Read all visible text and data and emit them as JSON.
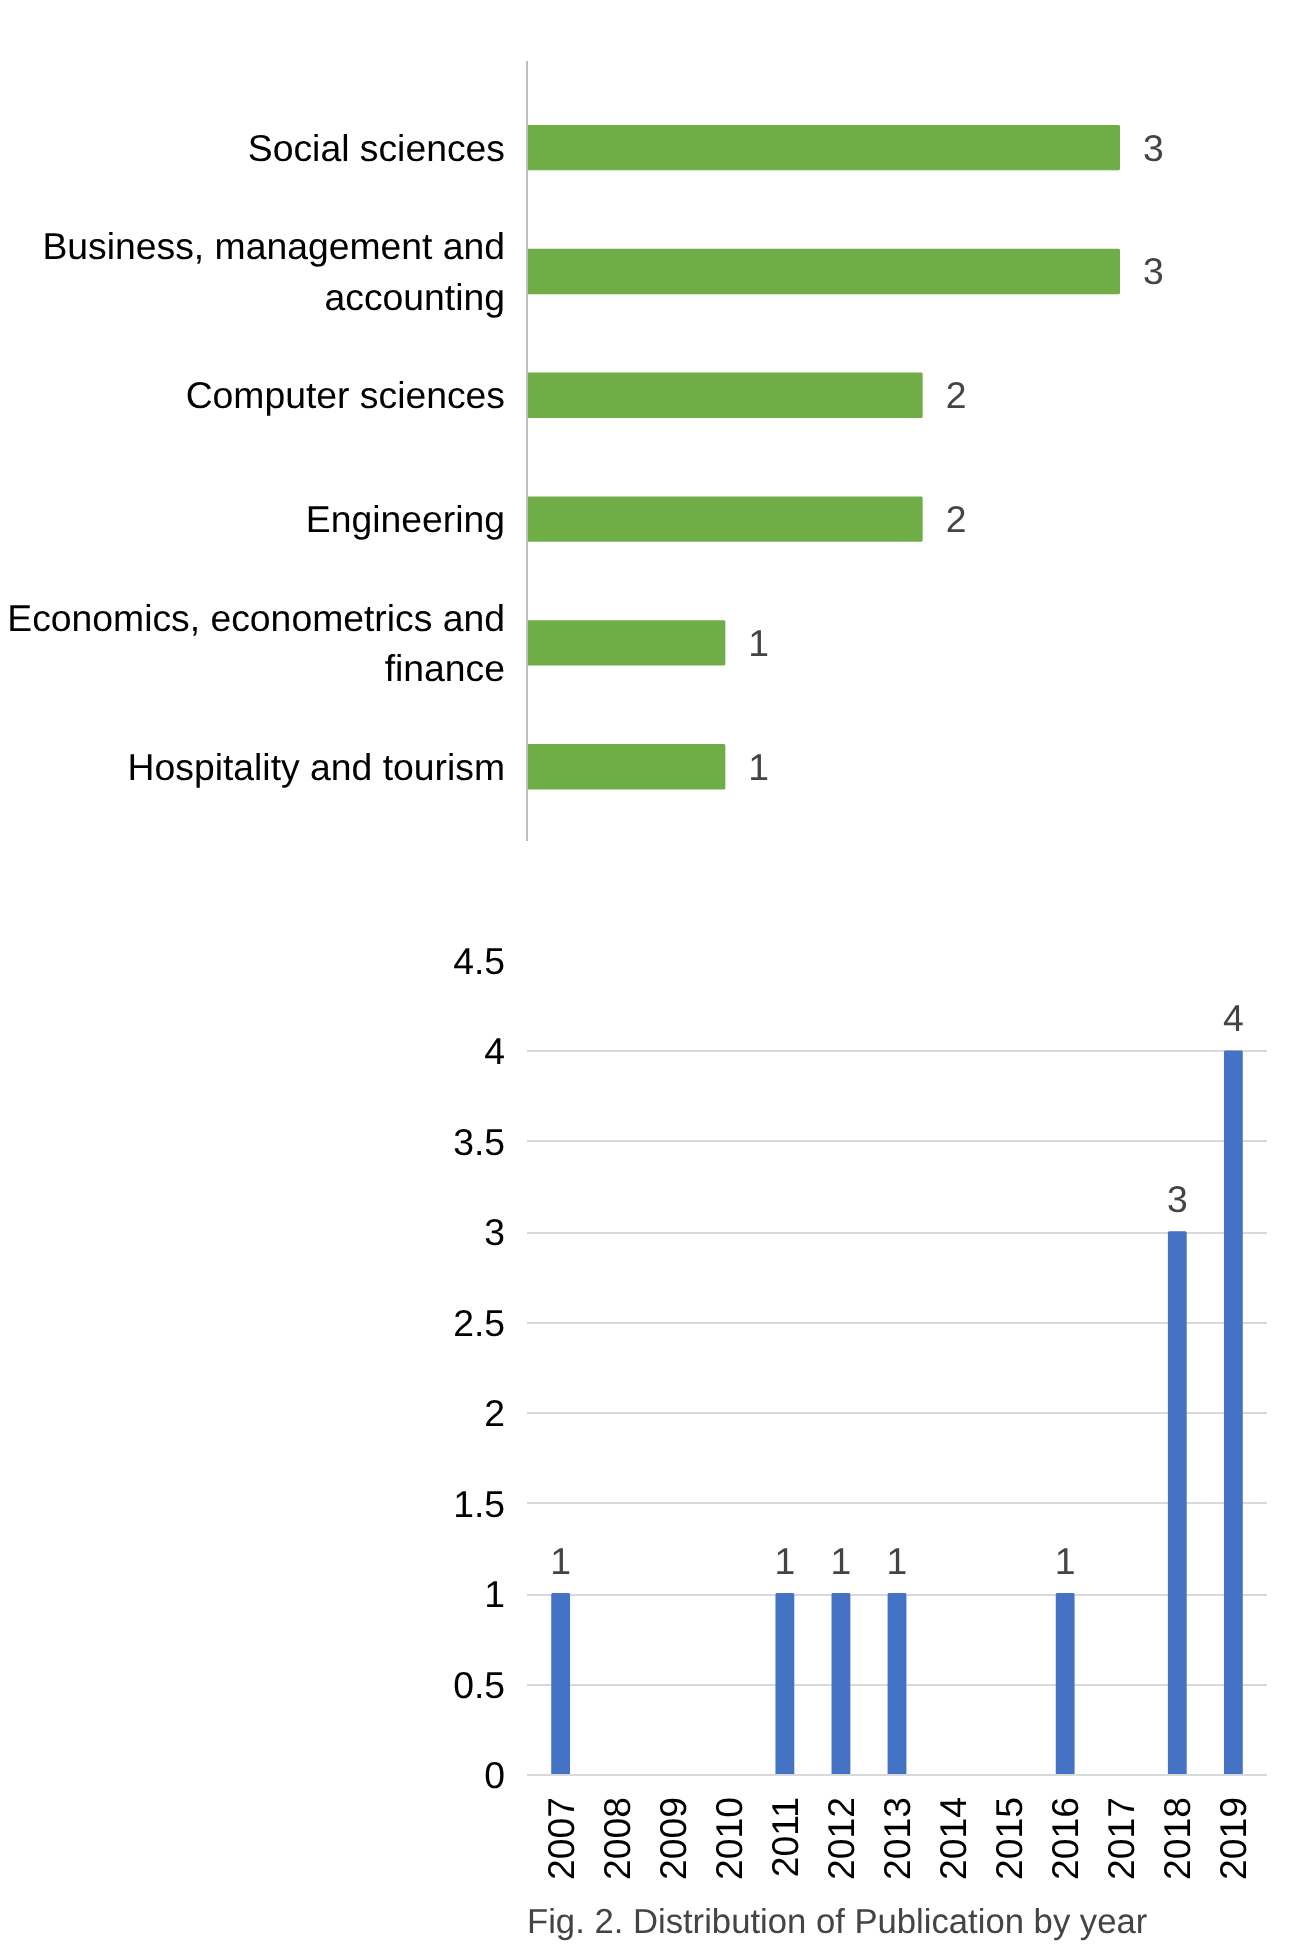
{
  "chart_data": [
    {
      "type": "bar",
      "orientation": "horizontal",
      "categories": [
        "Social sciences",
        "Business, management and accounting",
        "Computer sciences",
        "Engineering",
        "Economics, econometrics and finance",
        "Hospitality and tourism"
      ],
      "values": [
        3,
        3,
        2,
        2,
        1,
        1
      ],
      "color": "#70ad47",
      "data_labels": true,
      "tick_labels": "y",
      "grid": false
    },
    {
      "type": "bar",
      "categories": [
        "2007",
        "2008",
        "2009",
        "2010",
        "2011",
        "2012",
        "2013",
        "2014",
        "2015",
        "2016",
        "2017",
        "2018",
        "2019"
      ],
      "values": [
        1,
        0,
        0,
        0,
        1,
        1,
        1,
        0,
        0,
        1,
        0,
        3,
        4
      ],
      "value_labels": [
        "1",
        null,
        null,
        null,
        "1",
        "1",
        "1",
        null,
        null,
        "1",
        null,
        "3",
        "4"
      ],
      "color": "#4472c4",
      "ylim": [
        0,
        4.5
      ],
      "yticks": [
        0,
        0.5,
        1,
        1.5,
        2,
        2.5,
        3,
        3.5,
        4,
        4.5
      ],
      "grid": "y",
      "annotations": [
        "Fig. 2. Distribution of Publication by year"
      ]
    }
  ]
}
